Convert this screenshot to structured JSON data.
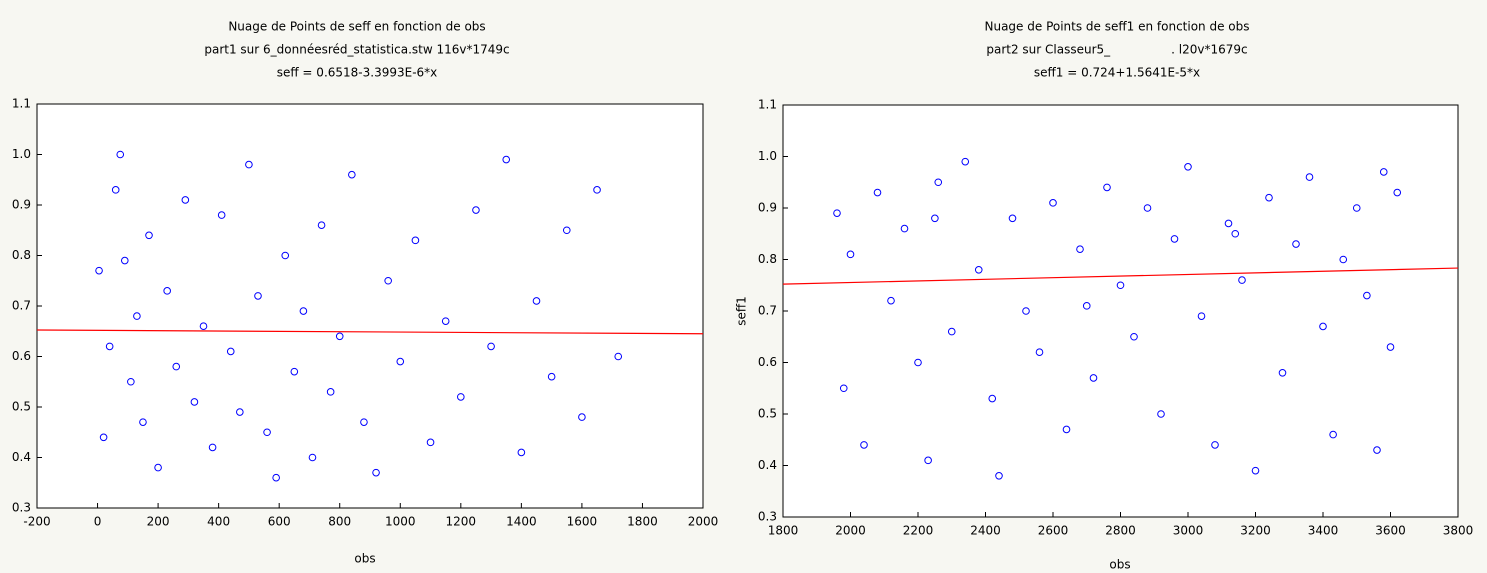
{
  "chart_data": [
    {
      "type": "scatter",
      "title": "Nuage de Points de seff en fonction de obs",
      "subtitle": "part1 sur 6_donnéesréd_statistica.stw 116v*1749c",
      "annotation": "seff = 0.6518-3.3993E-6*x",
      "x_label": "obs",
      "xlim": [
        -200,
        2000
      ],
      "xticks": [
        -200,
        0,
        200,
        400,
        600,
        800,
        1000,
        1200,
        1400,
        1600,
        1800,
        2000
      ],
      "ylim": [
        0.3,
        1.1
      ],
      "yticks": [
        0.3,
        0.4,
        0.5,
        0.6,
        0.7,
        0.8,
        0.9,
        {
          "value": 1,
          "label": "1.0"
        },
        1.1
      ],
      "series": [
        {
          "color": "#0000ff",
          "x": [
            5,
            20,
            40,
            60,
            75,
            90,
            110,
            130,
            150,
            170,
            200,
            230,
            260,
            290,
            320,
            350,
            380,
            410,
            440,
            470,
            500,
            530,
            560,
            590,
            620,
            650,
            680,
            710,
            740,
            770,
            800,
            840,
            880,
            920,
            960,
            1000,
            1050,
            1100,
            1150,
            1200,
            1250,
            1300,
            1350,
            1400,
            1450,
            1500,
            1550,
            1600,
            1650,
            1720
          ],
          "values": [
            0.77,
            0.44,
            0.62,
            0.93,
            1.0,
            0.79,
            0.55,
            0.68,
            0.47,
            0.84,
            0.38,
            0.73,
            0.58,
            0.91,
            0.51,
            0.66,
            0.42,
            0.88,
            0.61,
            0.49,
            0.98,
            0.72,
            0.45,
            0.36,
            0.8,
            0.57,
            0.69,
            0.4,
            0.86,
            0.53,
            0.64,
            0.96,
            0.47,
            0.37,
            0.75,
            0.59,
            0.83,
            0.43,
            0.67,
            0.52,
            0.89,
            0.62,
            0.99,
            0.41,
            0.71,
            0.56,
            0.85,
            0.48,
            0.93,
            0.6
          ]
        }
      ],
      "fit": {
        "color": "#ff0000",
        "x": [
          -200,
          2000
        ],
        "values": [
          0.6525,
          0.645
        ]
      }
    },
    {
      "type": "scatter",
      "title": "Nuage de Points de seff1 en fonction de obs",
      "subtitle": "part2 sur Classeur5_                . l20v*1679c",
      "annotation": "seff1 = 0.724+1.5641E-5*x",
      "x_label": "obs",
      "y_label": "seff1",
      "xlim": [
        1800,
        3800
      ],
      "xticks": [
        1800,
        2000,
        2200,
        2400,
        2600,
        2800,
        3000,
        3200,
        3400,
        3600,
        3800
      ],
      "ylim": [
        0.3,
        1.1
      ],
      "yticks": [
        0.3,
        0.4,
        0.5,
        0.6,
        0.7,
        0.8,
        0.9,
        {
          "value": 1,
          "label": "1.0"
        },
        1.1
      ],
      "series": [
        {
          "color": "#0000ff",
          "x": [
            1960,
            1980,
            2000,
            2040,
            2080,
            2120,
            2160,
            2200,
            2230,
            2260,
            2300,
            2340,
            2380,
            2420,
            2440,
            2480,
            2520,
            2560,
            2600,
            2640,
            2680,
            2720,
            2760,
            2800,
            2840,
            2880,
            2920,
            2960,
            3000,
            3040,
            3080,
            3120,
            3160,
            3200,
            3240,
            3280,
            3320,
            3360,
            3400,
            3430,
            3460,
            3500,
            3530,
            3560,
            3580,
            3600,
            3620,
            3140,
            2700,
            2250
          ],
          "values": [
            0.89,
            0.55,
            0.81,
            0.44,
            0.93,
            0.72,
            0.86,
            0.6,
            0.41,
            0.95,
            0.66,
            0.99,
            0.78,
            0.53,
            0.38,
            0.88,
            0.7,
            0.62,
            0.91,
            0.47,
            0.82,
            0.57,
            0.94,
            0.75,
            0.65,
            0.9,
            0.5,
            0.84,
            0.98,
            0.69,
            0.44,
            0.87,
            0.76,
            0.39,
            0.92,
            0.58,
            0.83,
            0.96,
            0.67,
            0.46,
            0.8,
            0.9,
            0.73,
            0.43,
            0.97,
            0.63,
            0.93,
            0.85,
            0.71,
            0.88
          ]
        }
      ],
      "fit": {
        "color": "#ff0000",
        "x": [
          1800,
          3800
        ],
        "values": [
          0.7522,
          0.7834
        ]
      }
    }
  ]
}
